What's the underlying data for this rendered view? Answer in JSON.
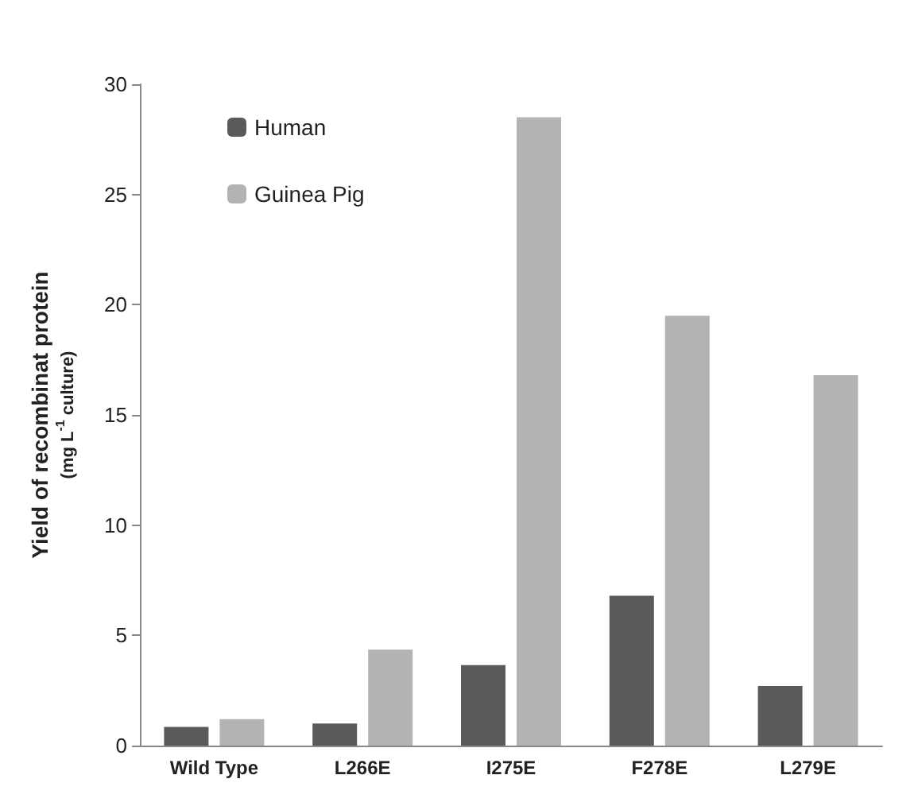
{
  "chart_data": {
    "type": "bar",
    "ylabel": "Yield of recombinat protein\n(mg L$^{-1}$ culture)",
    "categories": [
      "Wild Type",
      "L266E",
      "I275E",
      "F278E",
      "L279E"
    ],
    "series": [
      {
        "name": "Human",
        "color": "#5a5a5a",
        "values": [
          0.85,
          1.0,
          3.65,
          6.8,
          2.7
        ]
      },
      {
        "name": "Guinea Pig",
        "color": "#b3b3b3",
        "values": [
          1.2,
          4.35,
          28.5,
          19.5,
          16.8
        ]
      }
    ],
    "ylim": [
      0,
      30
    ],
    "yticks": [
      0,
      5,
      10,
      15,
      20,
      25,
      30
    ],
    "grid": false,
    "legend": "top left"
  }
}
